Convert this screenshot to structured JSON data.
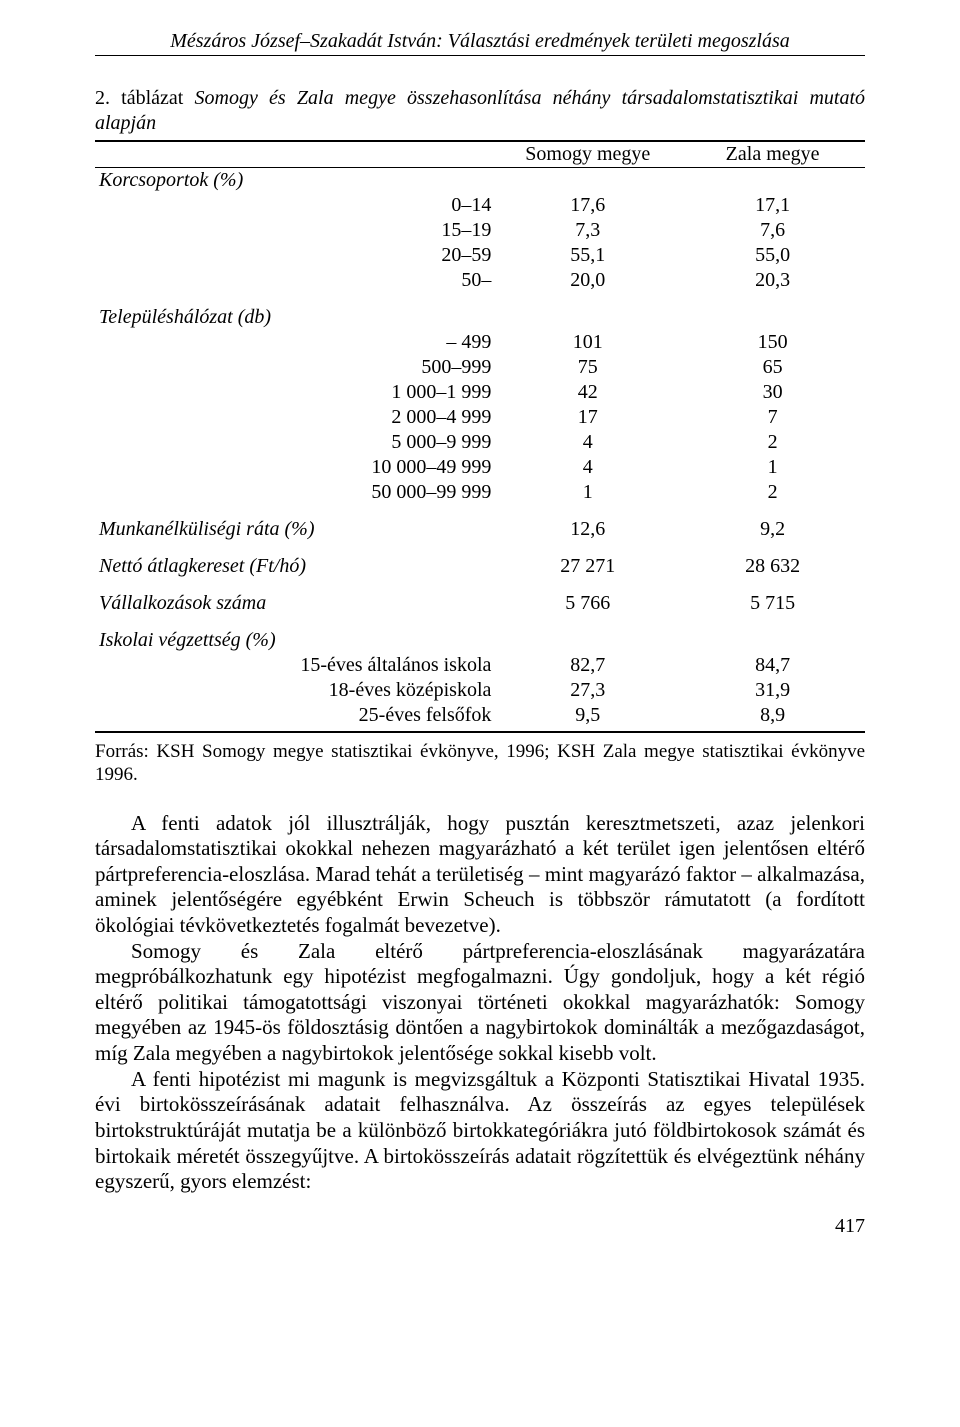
{
  "header": {
    "running_title": "Mészáros József–Szakadát István: Választási eredmények területi megoszlása"
  },
  "table": {
    "caption_lead": "2. táblázat ",
    "caption_title": "Somogy és Zala megye összehasonlítása néhány társadalomstatisztikai mutató alapján",
    "col_headers": [
      "",
      "Somogy megye",
      "Zala megye"
    ],
    "sections": [
      {
        "label": "Korcsoportok (%)",
        "rows": [
          {
            "label": "0–14",
            "v1": "17,6",
            "v2": "17,1"
          },
          {
            "label": "15–19",
            "v1": "7,3",
            "v2": "7,6"
          },
          {
            "label": "20–59",
            "v1": "55,1",
            "v2": "55,0"
          },
          {
            "label": "50–",
            "v1": "20,0",
            "v2": "20,3"
          }
        ]
      },
      {
        "label": "Településhálózat (db)",
        "rows": [
          {
            "label": "– 499",
            "v1": "101",
            "v2": "150"
          },
          {
            "label": "500–999",
            "v1": "75",
            "v2": "65"
          },
          {
            "label": "1 000–1 999",
            "v1": "42",
            "v2": "30"
          },
          {
            "label": "2 000–4 999",
            "v1": "17",
            "v2": "7"
          },
          {
            "label": "5 000–9 999",
            "v1": "4",
            "v2": "2"
          },
          {
            "label": "10 000–49 999",
            "v1": "4",
            "v2": "1"
          },
          {
            "label": "50 000–99 999",
            "v1": "1",
            "v2": "2"
          }
        ]
      }
    ],
    "single_rows": [
      {
        "label": "Munkanélküliségi ráta (%)",
        "v1": "12,6",
        "v2": "9,2"
      },
      {
        "label": "Nettó átlagkereset (Ft/hó)",
        "v1": "27 271",
        "v2": "28 632"
      },
      {
        "label": "Vállalkozások száma",
        "v1": "5 766",
        "v2": "5 715"
      }
    ],
    "edu_section": {
      "label": "Iskolai végzettség (%)",
      "rows": [
        {
          "label": "15-éves általános iskola",
          "v1": "82,7",
          "v2": "84,7"
        },
        {
          "label": "18-éves középiskola",
          "v1": "27,3",
          "v2": "31,9"
        },
        {
          "label": "25-éves felsőfok",
          "v1": "9,5",
          "v2": "8,9"
        }
      ]
    }
  },
  "source": "Forrás: KSH Somogy megye statisztikai évkönyve, 1996; KSH Zala megye statisztikai évkönyve 1996.",
  "paragraphs": [
    "A fenti adatok jól illusztrálják, hogy pusztán keresztmetszeti, azaz jelenkori társadalomstatisztikai okokkal nehezen magyarázható a két terület igen jelentősen eltérő pártpreferencia-eloszlása. Marad tehát a területiség – mint magyarázó faktor – alkalmazása, aminek jelentőségére egyébként Erwin Scheuch is többször rámutatott (a fordított ökológiai tévkövetkeztetés fogalmát bevezetve).",
    "Somogy és Zala eltérő pártpreferencia-eloszlásának magyarázatára megpróbálkozhatunk egy hipotézist megfogalmazni. Úgy gondoljuk, hogy a két régió eltérő politikai támogatottsági viszonyai történeti okokkal magyarázhatók: Somogy megyében az 1945-ös földosztásig döntően a nagybirtokok dominálták a mezőgazdaságot, míg Zala megyében a nagybirtokok jelentősége sokkal kisebb volt.",
    "A fenti hipotézist mi magunk is megvizsgáltuk a Központi Statisztikai Hivatal 1935. évi birtokösszeírásának adatait felhasználva. Az összeírás az egyes települések birtokstruktúráját mutatja be a különböző birtokkategóriákra jutó földbirtokosok számát és birtokaik méretét összegyűjtve. A birtokösszeírás adatait rögzítettük és elvégeztünk néhány egyszerű, gyors elemzést:"
  ],
  "page_number": "417"
}
